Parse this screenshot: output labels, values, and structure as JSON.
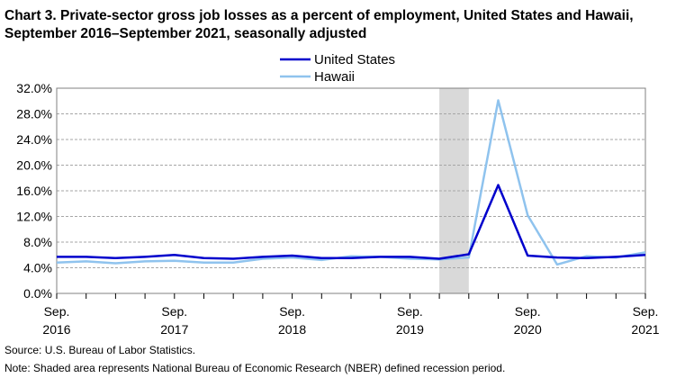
{
  "title": "Chart 3. Private-sector gross job losses as a percent of employment, United States and Hawaii, September 2016–September 2021, seasonally adjusted",
  "source": "Source: U.S. Bureau of Labor Statistics.",
  "note": "Note: Shaded area represents National Bureau of Economic Research (NBER) defined recession period.",
  "chart_data": {
    "type": "line",
    "title": "Chart 3. Private-sector gross job losses as a percent of employment, United States and Hawaii, September 2016–September 2021, seasonally adjusted",
    "xlabel": "",
    "ylabel": "",
    "ylim": [
      0,
      32
    ],
    "y_ticks": [
      "0.0%",
      "4.0%",
      "8.0%",
      "12.0%",
      "16.0%",
      "20.0%",
      "24.0%",
      "28.0%",
      "32.0%"
    ],
    "x_tick_labels": [
      {
        "month": "Sep.",
        "year": "2016"
      },
      {
        "month": "Sep.",
        "year": "2017"
      },
      {
        "month": "Sep.",
        "year": "2018"
      },
      {
        "month": "Sep.",
        "year": "2019"
      },
      {
        "month": "Sep.",
        "year": "2020"
      },
      {
        "month": "Sep.",
        "year": "2021"
      }
    ],
    "quarters": [
      "Sep. 2016",
      "Dec. 2016",
      "Mar. 2017",
      "Jun. 2017",
      "Sep. 2017",
      "Dec. 2017",
      "Mar. 2018",
      "Jun. 2018",
      "Sep. 2018",
      "Dec. 2018",
      "Mar. 2019",
      "Jun. 2019",
      "Sep. 2019",
      "Dec. 2019",
      "Mar. 2020",
      "Jun. 2020",
      "Sep. 2020",
      "Dec. 2020",
      "Mar. 2021",
      "Jun. 2021",
      "Sep. 2021"
    ],
    "recession": {
      "start": "Dec. 2019",
      "end": "Mar. 2020"
    },
    "grid": true,
    "legend_position": "top-center",
    "series": [
      {
        "name": "United States",
        "color": "#0000cc",
        "values": [
          5.7,
          5.7,
          5.5,
          5.7,
          6.0,
          5.5,
          5.4,
          5.7,
          5.9,
          5.5,
          5.5,
          5.7,
          5.7,
          5.4,
          6.1,
          16.9,
          5.9,
          5.6,
          5.5,
          5.7,
          6.0
        ]
      },
      {
        "name": "Hawaii",
        "color": "#8fc3ee",
        "values": [
          4.8,
          5.0,
          4.7,
          5.0,
          5.1,
          4.8,
          4.8,
          5.4,
          5.6,
          5.2,
          5.8,
          5.7,
          5.4,
          5.3,
          5.6,
          30.1,
          12.2,
          4.5,
          5.8,
          5.6,
          6.4
        ]
      }
    ]
  }
}
